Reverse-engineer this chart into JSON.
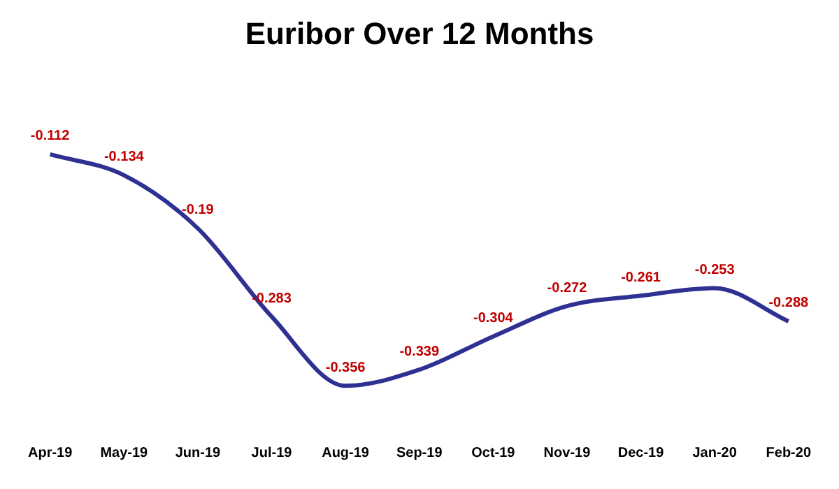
{
  "chart_data": {
    "type": "line",
    "title": "Euribor Over 12 Months",
    "categories": [
      "Apr-19",
      "May-19",
      "Jun-19",
      "Jul-19",
      "Aug-19",
      "Sep-19",
      "Oct-19",
      "Nov-19",
      "Dec-19",
      "Jan-20",
      "Feb-20"
    ],
    "series": [
      {
        "color": "#2e3192",
        "values": [
          -0.112,
          -0.134,
          -0.19,
          -0.283,
          -0.356,
          -0.339,
          -0.304,
          -0.272,
          -0.261,
          -0.253,
          -0.288
        ]
      }
    ],
    "data_labels": true,
    "marker": "none"
  }
}
